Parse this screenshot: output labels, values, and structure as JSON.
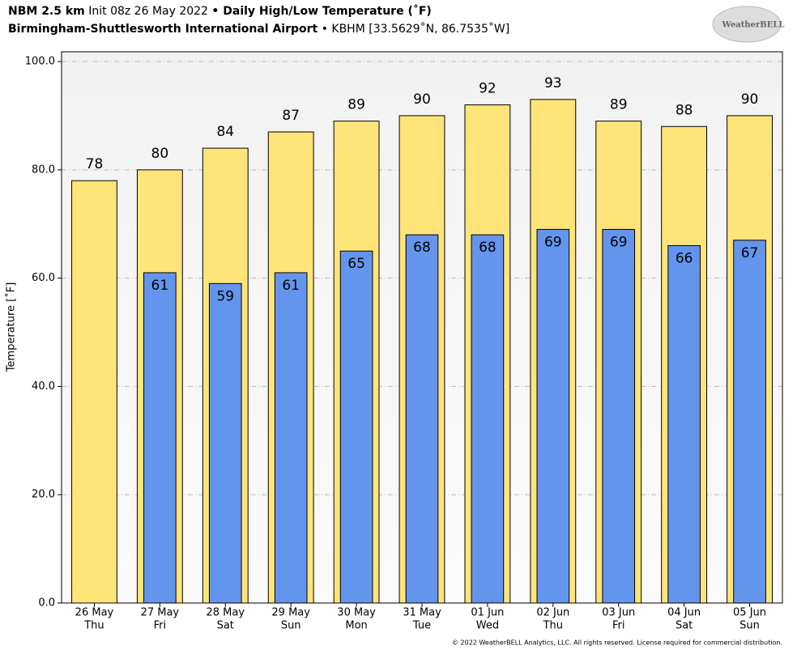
{
  "chart_data": {
    "type": "overlaid_bar",
    "title_parts": [
      "NBM 2.5 km",
      "Init 08z 26 May 2022",
      "• Daily High/Low Temperature (˚F)"
    ],
    "subtitle_parts": [
      "Birmingham-Shuttlesworth International Airport",
      "• KBHM [33.5629˚N, 86.7535˚W]"
    ],
    "y_label": "Temperature [˚F]",
    "categories": [
      "26 May",
      "27 May",
      "28 May",
      "29 May",
      "30 May",
      "31 May",
      "01 Jun",
      "02 Jun",
      "03 Jun",
      "04 Jun",
      "05 Jun"
    ],
    "weekdays": [
      "Thu",
      "Fri",
      "Sat",
      "Sun",
      "Mon",
      "Tue",
      "Wed",
      "Thu",
      "Fri",
      "Sat",
      "Sun"
    ],
    "series": [
      {
        "color": "#ffe47a",
        "values": [
          78,
          80,
          84,
          87,
          89,
          90,
          92,
          93,
          89,
          88,
          90
        ]
      },
      {
        "color": "#6495ed",
        "values": [
          null,
          61,
          59,
          61,
          65,
          68,
          68,
          69,
          69,
          66,
          67
        ]
      }
    ],
    "ylim": [
      0,
      101.8
    ],
    "yticks": [
      {
        "value": 0,
        "label": "0.0"
      },
      {
        "value": 20,
        "label": "20.0"
      },
      {
        "value": 40,
        "label": "40.0"
      },
      {
        "value": 60,
        "label": "60.0"
      },
      {
        "value": 80,
        "label": "80.0"
      },
      {
        "value": 100,
        "label": "100.0"
      }
    ],
    "grid": true,
    "logo": "WeatherBELL",
    "footer": "© 2022 WeatherBELL Analytics, LLC. All rights reserved. License required for commercial distribution."
  }
}
